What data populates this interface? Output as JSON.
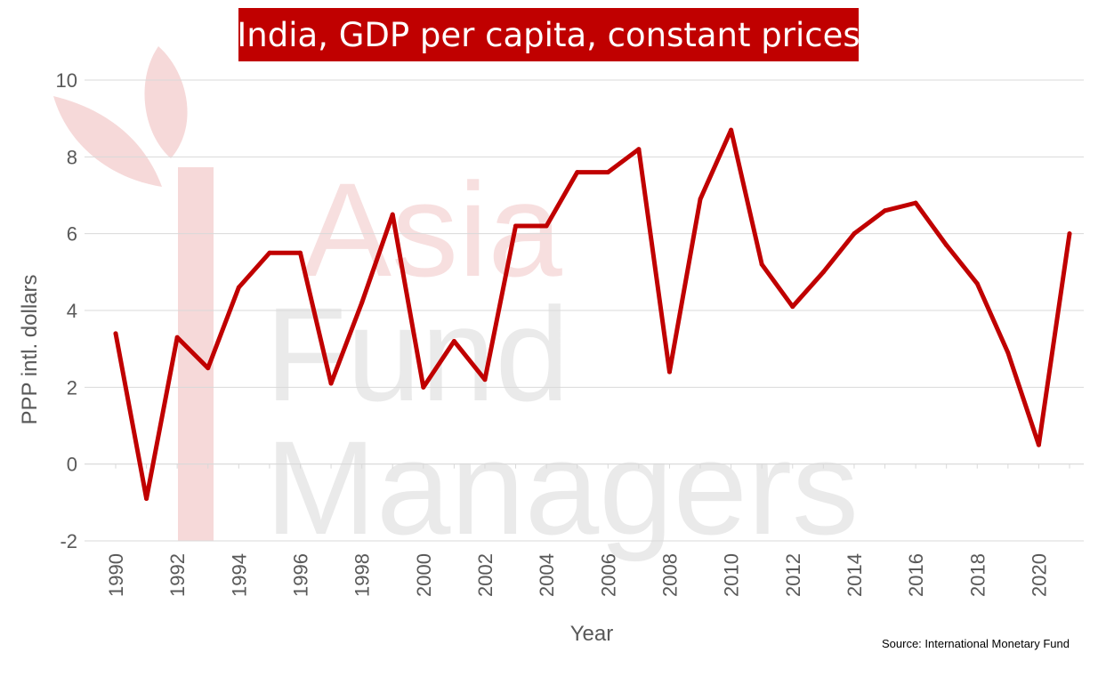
{
  "watermark": {
    "line1": "Asia",
    "line2": "Fund",
    "line3": "Managers"
  },
  "colors": {
    "title_bg": "#c00000",
    "line": "#c00000",
    "grid": "#d9d9d9",
    "axis_text": "#595959"
  },
  "source": "Source: International Monetary Fund",
  "chart_data": {
    "type": "line",
    "title": "India, GDP per capita, constant prices",
    "xlabel": "Year",
    "ylabel": "PPP intl. dollars",
    "ylim": [
      -2,
      10
    ],
    "yticks": [
      -2,
      0,
      2,
      4,
      6,
      8,
      10
    ],
    "xticks": [
      1990,
      1992,
      1994,
      1996,
      1998,
      2000,
      2002,
      2004,
      2006,
      2008,
      2010,
      2012,
      2014,
      2016,
      2018,
      2020
    ],
    "xlim": [
      1990,
      2021
    ],
    "grid": true,
    "x": [
      1990,
      1991,
      1992,
      1993,
      1994,
      1995,
      1996,
      1997,
      1998,
      1999,
      2000,
      2001,
      2002,
      2003,
      2004,
      2005,
      2006,
      2007,
      2008,
      2009,
      2010,
      2011,
      2012,
      2013,
      2014,
      2015,
      2016,
      2017,
      2018,
      2019,
      2020,
      2021
    ],
    "series": [
      {
        "values": [
          3.4,
          -0.9,
          3.3,
          2.5,
          4.6,
          5.5,
          5.5,
          2.1,
          4.2,
          6.5,
          2.0,
          3.2,
          2.2,
          6.2,
          6.2,
          7.6,
          7.6,
          8.2,
          2.4,
          6.9,
          8.7,
          5.2,
          4.1,
          5.0,
          6.0,
          6.6,
          6.8,
          5.7,
          4.7,
          2.9,
          0.5,
          6.0
        ]
      }
    ]
  }
}
